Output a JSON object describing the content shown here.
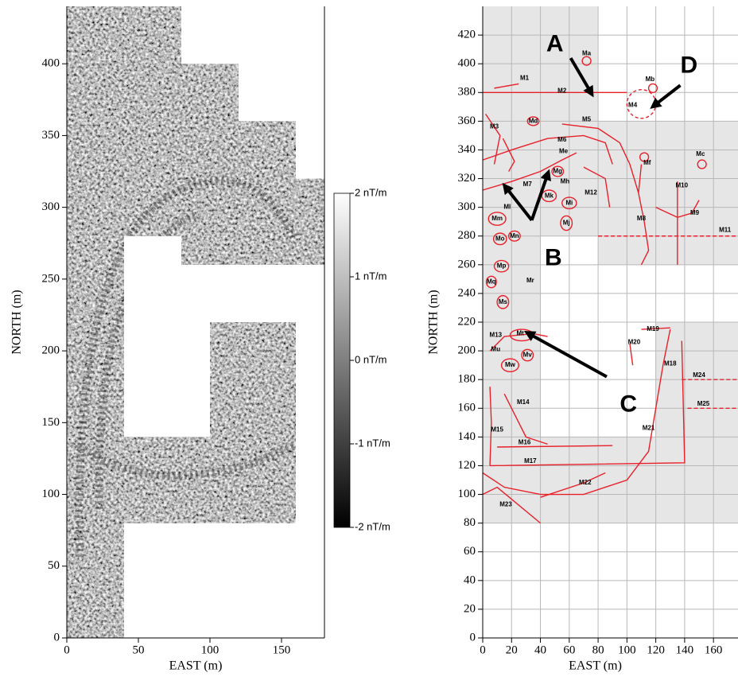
{
  "chart_data": [
    {
      "type": "image",
      "xlabel": "EAST (m)",
      "ylabel": "NORTH (m)",
      "xlim": [
        0,
        180
      ],
      "ylim": [
        0,
        440
      ],
      "xticks": [
        0,
        50,
        100,
        150
      ],
      "yticks": [
        0,
        50,
        100,
        150,
        200,
        250,
        300,
        350,
        400
      ],
      "colorbar": {
        "clim": [
          -2,
          2
        ],
        "ticks": [
          {
            "value": 2,
            "label": "2 nT/m"
          },
          {
            "value": 1,
            "label": "1 nT/m"
          },
          {
            "value": 0,
            "label": "0 nT/m"
          },
          {
            "value": -1,
            "label": "-1 nT/m"
          },
          {
            "value": -2,
            "label": "-2 nT/m"
          }
        ]
      }
    },
    {
      "type": "map",
      "xlabel": "EAST (m)",
      "ylabel": "NORTH (m)",
      "xlim": [
        0,
        177
      ],
      "ylim": [
        0,
        440
      ],
      "grid": true,
      "color": "#e8202a",
      "xticks": [
        0,
        20,
        40,
        60,
        80,
        100,
        120,
        140,
        160
      ],
      "yticks": [
        0,
        20,
        40,
        60,
        80,
        100,
        120,
        140,
        160,
        180,
        200,
        220,
        240,
        260,
        280,
        300,
        320,
        340,
        360,
        380,
        400,
        420
      ],
      "annotations": [
        {
          "text": "A",
          "x": 50,
          "y": 413
        },
        {
          "text": "D",
          "x": 143,
          "y": 398
        },
        {
          "text": "B",
          "x": 49,
          "y": 264
        },
        {
          "text": "C",
          "x": 101,
          "y": 162
        },
        {
          "text": "M1",
          "x": 29,
          "y": 390
        },
        {
          "text": "Ma",
          "x": 72,
          "y": 407
        },
        {
          "text": "Mb",
          "x": 116,
          "y": 389
        },
        {
          "text": "M2",
          "x": 55,
          "y": 381
        },
        {
          "text": "M4",
          "x": 104,
          "y": 371
        },
        {
          "text": "Md",
          "x": 35,
          "y": 360
        },
        {
          "text": "M5",
          "x": 72,
          "y": 361
        },
        {
          "text": "M3",
          "x": 8,
          "y": 356
        },
        {
          "text": "M6",
          "x": 55,
          "y": 347
        },
        {
          "text": "Me",
          "x": 56,
          "y": 339
        },
        {
          "text": "Mc",
          "x": 151,
          "y": 337
        },
        {
          "text": "Mf",
          "x": 114,
          "y": 331
        },
        {
          "text": "Mg",
          "x": 52,
          "y": 325
        },
        {
          "text": "M10",
          "x": 138,
          "y": 315
        },
        {
          "text": "M7",
          "x": 31,
          "y": 316
        },
        {
          "text": "Mh",
          "x": 57,
          "y": 318
        },
        {
          "text": "M12",
          "x": 75,
          "y": 310
        },
        {
          "text": "Mk",
          "x": 46,
          "y": 308
        },
        {
          "text": "Ml",
          "x": 17,
          "y": 300
        },
        {
          "text": "Mi",
          "x": 60,
          "y": 303
        },
        {
          "text": "Mm",
          "x": 10,
          "y": 292
        },
        {
          "text": "M9",
          "x": 147,
          "y": 296
        },
        {
          "text": "M8",
          "x": 110,
          "y": 292
        },
        {
          "text": "Mj",
          "x": 58,
          "y": 289
        },
        {
          "text": "M11",
          "x": 168,
          "y": 284
        },
        {
          "text": "Mo",
          "x": 12,
          "y": 278
        },
        {
          "text": "Mn",
          "x": 22,
          "y": 280
        },
        {
          "text": "Mp",
          "x": 13,
          "y": 259
        },
        {
          "text": "Mq",
          "x": 6,
          "y": 248
        },
        {
          "text": "Mr",
          "x": 33,
          "y": 249
        },
        {
          "text": "Ms",
          "x": 14,
          "y": 234
        },
        {
          "text": "M19",
          "x": 118,
          "y": 215
        },
        {
          "text": "M13",
          "x": 9,
          "y": 211
        },
        {
          "text": "Mt",
          "x": 26,
          "y": 212
        },
        {
          "text": "M20",
          "x": 105,
          "y": 206
        },
        {
          "text": "Mu",
          "x": 9,
          "y": 201
        },
        {
          "text": "Mv",
          "x": 31,
          "y": 197
        },
        {
          "text": "M18",
          "x": 130,
          "y": 191
        },
        {
          "text": "Mw",
          "x": 19,
          "y": 190
        },
        {
          "text": "M24",
          "x": 150,
          "y": 183
        },
        {
          "text": "M14",
          "x": 28,
          "y": 164
        },
        {
          "text": "M25",
          "x": 153,
          "y": 163
        },
        {
          "text": "M21",
          "x": 115,
          "y": 146
        },
        {
          "text": "M15",
          "x": 10,
          "y": 145
        },
        {
          "text": "M16",
          "x": 29,
          "y": 136
        },
        {
          "text": "M17",
          "x": 33,
          "y": 123
        },
        {
          "text": "M22",
          "x": 71,
          "y": 108
        },
        {
          "text": "M23",
          "x": 16,
          "y": 93
        }
      ]
    }
  ]
}
